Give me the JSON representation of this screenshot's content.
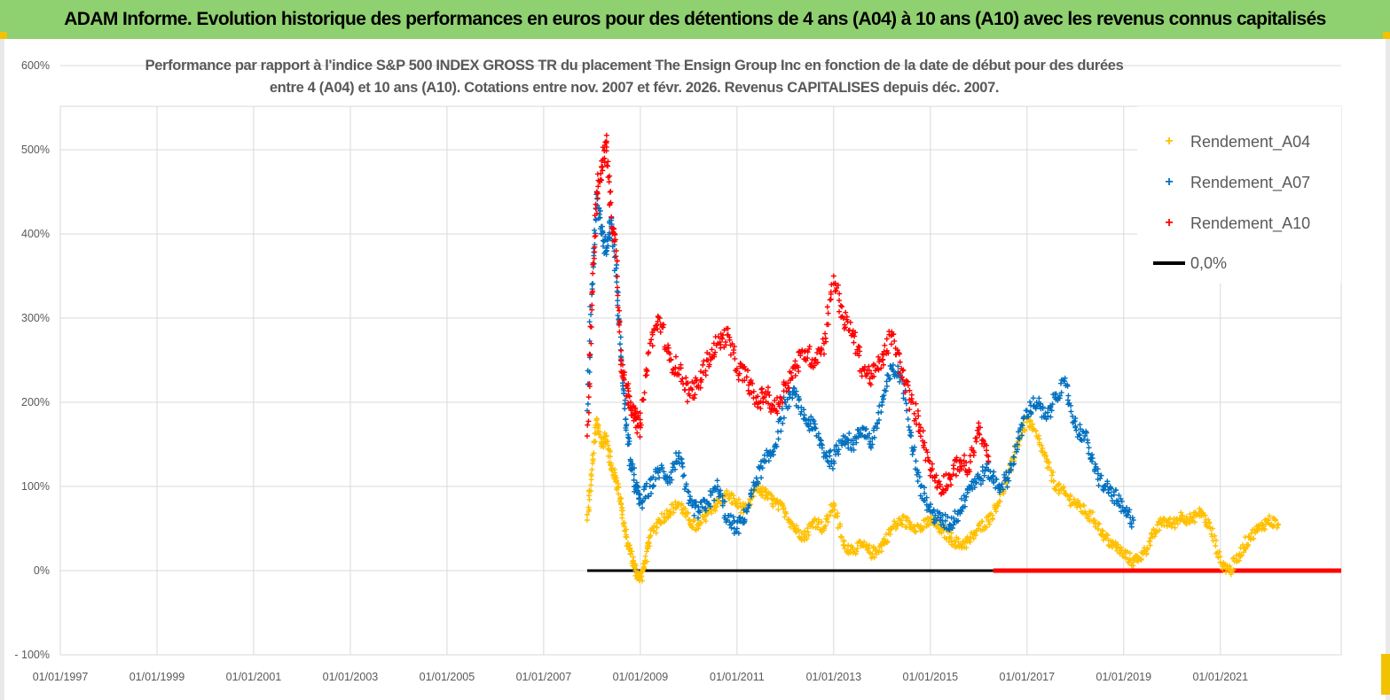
{
  "header": {
    "title": "ADAM Informe. Evolution historique des performances en euros pour des détentions de 4 ans (A04) à 10 ans (A10) avec les revenus connus capitalisés"
  },
  "colors": {
    "banner": "#8fd070",
    "a04": "#ffc000",
    "a07": "#0070c0",
    "a10": "#ff0000",
    "zero_line": "#000000"
  },
  "chart_data": {
    "type": "scatter",
    "title_lines": [
      "Performance par rapport à l'indice S&P 500 INDEX GROSS TR  du placement The Ensign Group Inc en fonction de la date de début pour des durées",
      "entre 4 (A04) et 10 ans (A10).  Cotations entre nov. 2007 et févr. 2026. Revenus CAPITALISES depuis déc. 2007."
    ],
    "y_ticks": [
      "600%",
      "500%",
      "400%",
      "300%",
      "200%",
      "100%",
      "0%",
      "- 100%"
    ],
    "x_ticks": [
      "01/01/1997",
      "01/01/1999",
      "01/01/2001",
      "01/01/2003",
      "01/01/2005",
      "01/01/2007",
      "01/01/2009",
      "01/01/2011",
      "01/01/2013",
      "01/01/2015",
      "01/01/2017",
      "01/01/2019",
      "01/01/2021"
    ],
    "ylim": [
      -100,
      600
    ],
    "xlim": [
      1997.0,
      2023.5
    ],
    "grid": true,
    "legend_position": "top-right",
    "legend": [
      {
        "key": "a04",
        "label": "Rendement_A04"
      },
      {
        "key": "a07",
        "label": "Rendement_A07"
      },
      {
        "key": "a10",
        "label": "Rendement_A10"
      },
      {
        "key": "zero",
        "label": "0,0%"
      }
    ],
    "series": [
      {
        "name": "Rendement_A04",
        "key": "a04",
        "x": [
          2007.9,
          2008.0,
          2008.1,
          2008.2,
          2008.3,
          2008.4,
          2008.5,
          2008.6,
          2008.7,
          2008.8,
          2008.9,
          2009.0,
          2009.1,
          2009.2,
          2009.4,
          2009.6,
          2009.8,
          2010.0,
          2010.2,
          2010.4,
          2010.6,
          2010.8,
          2011.0,
          2011.2,
          2011.4,
          2011.6,
          2011.8,
          2012.0,
          2012.2,
          2012.4,
          2012.6,
          2012.8,
          2013.0,
          2013.2,
          2013.4,
          2013.6,
          2013.8,
          2014.0,
          2014.2,
          2014.4,
          2014.6,
          2014.8,
          2015.0,
          2015.2,
          2015.4,
          2015.6,
          2015.8,
          2016.0,
          2016.2,
          2016.4,
          2016.6,
          2016.8,
          2017.0,
          2017.2,
          2017.4,
          2017.6,
          2017.8,
          2018.0,
          2018.2,
          2018.4,
          2018.6,
          2018.8,
          2019.0,
          2019.2,
          2019.4,
          2019.6,
          2019.8,
          2020.0,
          2020.2,
          2020.4,
          2020.6,
          2020.8,
          2021.0,
          2021.2,
          2021.4,
          2021.6,
          2021.8,
          2022.0,
          2022.2
        ],
        "y": [
          60,
          120,
          180,
          150,
          160,
          120,
          110,
          80,
          40,
          20,
          0,
          -10,
          10,
          40,
          60,
          70,
          80,
          60,
          50,
          70,
          80,
          90,
          80,
          70,
          100,
          90,
          80,
          70,
          50,
          40,
          60,
          50,
          80,
          30,
          25,
          30,
          20,
          30,
          50,
          60,
          55,
          50,
          60,
          50,
          40,
          30,
          35,
          50,
          60,
          80,
          110,
          150,
          180,
          160,
          130,
          100,
          90,
          80,
          70,
          60,
          40,
          30,
          20,
          10,
          20,
          40,
          60,
          55,
          65,
          60,
          70,
          50,
          10,
          0,
          20,
          40,
          50,
          60,
          55
        ]
      },
      {
        "name": "Rendement_A07",
        "key": "a07",
        "x": [
          2007.9,
          2008.0,
          2008.1,
          2008.2,
          2008.3,
          2008.4,
          2008.5,
          2008.6,
          2008.7,
          2008.8,
          2008.9,
          2009.0,
          2009.2,
          2009.4,
          2009.6,
          2009.8,
          2010.0,
          2010.2,
          2010.4,
          2010.6,
          2010.8,
          2011.0,
          2011.2,
          2011.4,
          2011.6,
          2011.8,
          2012.0,
          2012.2,
          2012.4,
          2012.6,
          2012.8,
          2013.0,
          2013.2,
          2013.4,
          2013.6,
          2013.8,
          2014.0,
          2014.2,
          2014.4,
          2014.6,
          2014.8,
          2015.0,
          2015.2,
          2015.4,
          2015.6,
          2015.8,
          2016.0,
          2016.2,
          2016.4,
          2016.6,
          2016.8,
          2017.0,
          2017.2,
          2017.4,
          2017.6,
          2017.8,
          2018.0,
          2018.2,
          2018.4,
          2018.6,
          2018.8,
          2019.0,
          2019.2
        ],
        "y": [
          190,
          340,
          450,
          400,
          380,
          420,
          350,
          250,
          180,
          130,
          100,
          80,
          100,
          120,
          110,
          140,
          80,
          70,
          80,
          100,
          60,
          50,
          70,
          110,
          130,
          150,
          200,
          210,
          180,
          170,
          140,
          130,
          160,
          150,
          170,
          150,
          200,
          240,
          230,
          160,
          100,
          70,
          60,
          55,
          70,
          100,
          110,
          120,
          100,
          110,
          150,
          190,
          200,
          180,
          210,
          220,
          170,
          160,
          120,
          100,
          90,
          70,
          60
        ]
      },
      {
        "name": "Rendement_A10",
        "key": "a10",
        "x": [
          2007.9,
          2008.0,
          2008.1,
          2008.2,
          2008.3,
          2008.4,
          2008.5,
          2008.6,
          2008.7,
          2008.8,
          2008.9,
          2009.0,
          2009.2,
          2009.4,
          2009.6,
          2009.8,
          2010.0,
          2010.2,
          2010.4,
          2010.6,
          2010.8,
          2011.0,
          2011.2,
          2011.4,
          2011.6,
          2011.8,
          2012.0,
          2012.2,
          2012.4,
          2012.6,
          2012.8,
          2013.0,
          2013.2,
          2013.4,
          2013.6,
          2013.8,
          2014.0,
          2014.2,
          2014.4,
          2014.6,
          2014.8,
          2015.0,
          2015.2,
          2015.4,
          2015.6,
          2015.8,
          2016.0,
          2016.2
        ],
        "y": [
          160,
          330,
          450,
          480,
          510,
          420,
          380,
          250,
          220,
          200,
          180,
          170,
          270,
          300,
          250,
          240,
          210,
          220,
          250,
          270,
          280,
          240,
          230,
          200,
          210,
          190,
          220,
          240,
          260,
          250,
          270,
          350,
          300,
          280,
          240,
          230,
          250,
          280,
          240,
          200,
          170,
          120,
          100,
          110,
          130,
          120,
          170,
          130
        ]
      },
      {
        "name": "0,0%",
        "key": "zero",
        "x": [
          2007.9,
          2023.5
        ],
        "y": [
          0,
          0
        ]
      }
    ]
  }
}
